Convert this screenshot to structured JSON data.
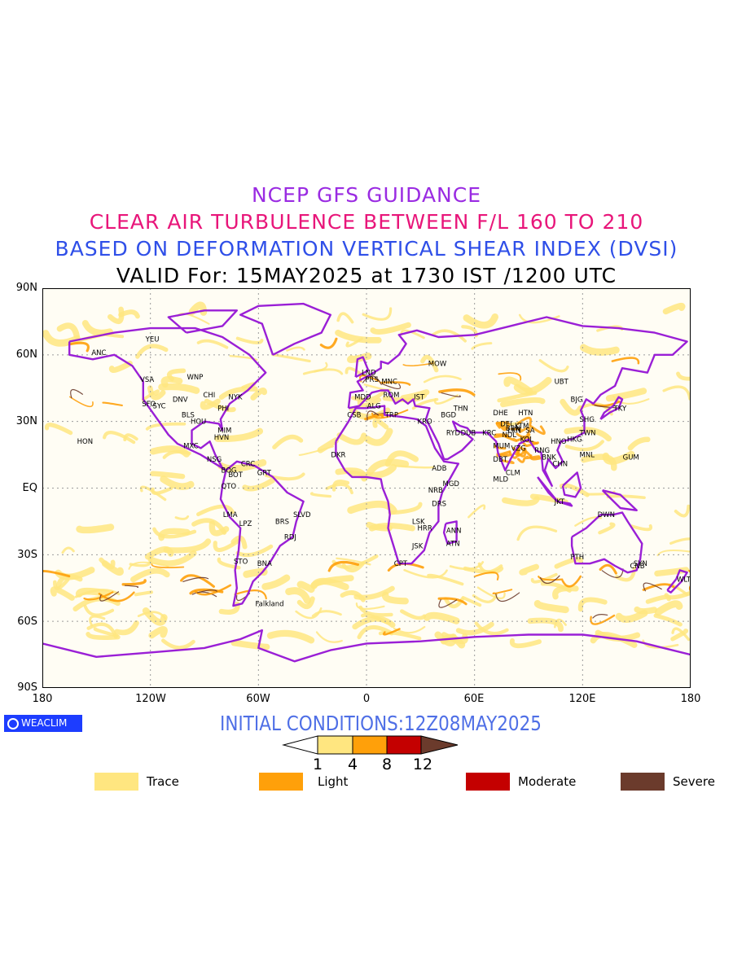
{
  "titles": {
    "line1": "NCEP GFS GUIDANCE",
    "line2": "CLEAR AIR TURBULENCE BETWEEN F/L 160 TO 210",
    "line3": "BASED ON DEFORMATION VERTICAL SHEAR INDEX (DVSI)",
    "line4": "VALID For: 15MAY2025 at 1730 IST /1200 UTC"
  },
  "colors": {
    "title1": "#9a2be2",
    "title2": "#e8167a",
    "title3": "#2f4fe8",
    "coastline": "#9a1fd6",
    "trace": "#ffe680",
    "light": "#ffa00a",
    "moderate": "#c40000",
    "severe": "#6b3b2c"
  },
  "axes": {
    "y_ticks": [
      "90N",
      "60N",
      "30N",
      "EQ",
      "30S",
      "60S",
      "90S"
    ],
    "x_ticks": [
      "180",
      "120W",
      "60W",
      "0",
      "60E",
      "120E",
      "180"
    ]
  },
  "stations": [
    {
      "code": "ANC",
      "lon": -150,
      "lat": 61
    },
    {
      "code": "YEU",
      "lon": -120,
      "lat": 67
    },
    {
      "code": "VSA",
      "lon": -123,
      "lat": 49
    },
    {
      "code": "WNP",
      "lon": -97,
      "lat": 50
    },
    {
      "code": "SFO",
      "lon": -122,
      "lat": 38
    },
    {
      "code": "SYC",
      "lon": -116,
      "lat": 37
    },
    {
      "code": "DNV",
      "lon": -105,
      "lat": 40
    },
    {
      "code": "CHI",
      "lon": -88,
      "lat": 42
    },
    {
      "code": "NYK",
      "lon": -74,
      "lat": 41
    },
    {
      "code": "BLS",
      "lon": -100,
      "lat": 33
    },
    {
      "code": "HOU",
      "lon": -95,
      "lat": 30
    },
    {
      "code": "PHI",
      "lon": -80,
      "lat": 36
    },
    {
      "code": "MIM",
      "lon": -80,
      "lat": 26
    },
    {
      "code": "HVN",
      "lon": -82,
      "lat": 23
    },
    {
      "code": "HON",
      "lon": -158,
      "lat": 21
    },
    {
      "code": "MXC",
      "lon": -99,
      "lat": 19
    },
    {
      "code": "NSG",
      "lon": -86,
      "lat": 13
    },
    {
      "code": "CRC",
      "lon": -67,
      "lat": 11
    },
    {
      "code": "BOG",
      "lon": -78,
      "lat": 8
    },
    {
      "code": "BOT",
      "lon": -74,
      "lat": 6
    },
    {
      "code": "GRT",
      "lon": -58,
      "lat": 7
    },
    {
      "code": "QTO",
      "lon": -78,
      "lat": 1
    },
    {
      "code": "LMA",
      "lon": -77,
      "lat": -12
    },
    {
      "code": "LPZ",
      "lon": -68,
      "lat": -16
    },
    {
      "code": "BRS",
      "lon": -48,
      "lat": -15
    },
    {
      "code": "SLVD",
      "lon": -38,
      "lat": -12
    },
    {
      "code": "RDJ",
      "lon": -43,
      "lat": -22
    },
    {
      "code": "STO",
      "lon": -71,
      "lat": -33
    },
    {
      "code": "BNA",
      "lon": -58,
      "lat": -34
    },
    {
      "code": "Falkland",
      "lon": -59,
      "lat": -52
    },
    {
      "code": "LND",
      "lon": 0,
      "lat": 52
    },
    {
      "code": "PRS",
      "lon": 2,
      "lat": 49
    },
    {
      "code": "MNC",
      "lon": 11,
      "lat": 48
    },
    {
      "code": "MOW",
      "lon": 37,
      "lat": 56
    },
    {
      "code": "MDD",
      "lon": -4,
      "lat": 41
    },
    {
      "code": "ROM",
      "lon": 12,
      "lat": 42
    },
    {
      "code": "IST",
      "lon": 29,
      "lat": 41
    },
    {
      "code": "ALG",
      "lon": 3,
      "lat": 37
    },
    {
      "code": "CSB",
      "lon": -8,
      "lat": 33
    },
    {
      "code": "TRP",
      "lon": 13,
      "lat": 33
    },
    {
      "code": "KRO",
      "lon": 31,
      "lat": 30
    },
    {
      "code": "BGD",
      "lon": 44,
      "lat": 33
    },
    {
      "code": "THN",
      "lon": 51,
      "lat": 36
    },
    {
      "code": "RYD",
      "lon": 47,
      "lat": 25
    },
    {
      "code": "DUB",
      "lon": 55,
      "lat": 25
    },
    {
      "code": "KRC",
      "lon": 67,
      "lat": 25
    },
    {
      "code": "ADB",
      "lon": 39,
      "lat": 9
    },
    {
      "code": "DKR",
      "lon": -17,
      "lat": 15
    },
    {
      "code": "NRB",
      "lon": 37,
      "lat": -1
    },
    {
      "code": "MGD",
      "lon": 45,
      "lat": 2
    },
    {
      "code": "DRS",
      "lon": 39,
      "lat": -7
    },
    {
      "code": "ANN",
      "lon": 47,
      "lat": -19
    },
    {
      "code": "LSK",
      "lon": 28,
      "lat": -15
    },
    {
      "code": "HRR",
      "lon": 31,
      "lat": -18
    },
    {
      "code": "ATN",
      "lon": 47,
      "lat": -25
    },
    {
      "code": "JSK",
      "lon": 28,
      "lat": -26
    },
    {
      "code": "CPT",
      "lon": 18,
      "lat": -34
    },
    {
      "code": "DHE",
      "lon": 73,
      "lat": 34
    },
    {
      "code": "DEL",
      "lon": 77,
      "lat": 29
    },
    {
      "code": "BRN",
      "lon": 80,
      "lat": 27
    },
    {
      "code": "LKN",
      "lon": 81,
      "lat": 26
    },
    {
      "code": "NDL",
      "lon": 78,
      "lat": 24
    },
    {
      "code": "KTM",
      "lon": 85,
      "lat": 28
    },
    {
      "code": "SA",
      "lon": 91,
      "lat": 26
    },
    {
      "code": "HTN",
      "lon": 87,
      "lat": 34
    },
    {
      "code": "MUM",
      "lon": 73,
      "lat": 19
    },
    {
      "code": "KOL",
      "lon": 88,
      "lat": 22
    },
    {
      "code": "VZG",
      "lon": 83,
      "lat": 18
    },
    {
      "code": "DBT",
      "lon": 73,
      "lat": 13
    },
    {
      "code": "CLM",
      "lon": 80,
      "lat": 7
    },
    {
      "code": "MLD",
      "lon": 73,
      "lat": 4
    },
    {
      "code": "RNG",
      "lon": 96,
      "lat": 17
    },
    {
      "code": "BNK",
      "lon": 100,
      "lat": 14
    },
    {
      "code": "CHN",
      "lon": 106,
      "lat": 11
    },
    {
      "code": "HNO",
      "lon": 105,
      "lat": 21
    },
    {
      "code": "HKG",
      "lon": 114,
      "lat": 22
    },
    {
      "code": "TWN",
      "lon": 121,
      "lat": 25
    },
    {
      "code": "SHG",
      "lon": 121,
      "lat": 31
    },
    {
      "code": "BJG",
      "lon": 116,
      "lat": 40
    },
    {
      "code": "UBT",
      "lon": 107,
      "lat": 48
    },
    {
      "code": "TKY",
      "lon": 140,
      "lat": 36
    },
    {
      "code": "MNL",
      "lon": 121,
      "lat": 15
    },
    {
      "code": "GUM",
      "lon": 145,
      "lat": 14
    },
    {
      "code": "JKT",
      "lon": 107,
      "lat": -6
    },
    {
      "code": "DWN",
      "lon": 131,
      "lat": -12
    },
    {
      "code": "PTH",
      "lon": 116,
      "lat": -31
    },
    {
      "code": "SYN",
      "lon": 151,
      "lat": -34
    },
    {
      "code": "CNB",
      "lon": 149,
      "lat": -35
    },
    {
      "code": "WLT",
      "lon": 175,
      "lat": -41
    }
  ],
  "bottom": {
    "logo": "WEACLIM",
    "init_conditions": "INITIAL CONDITIONS:12Z08MAY2025"
  },
  "colorbar": {
    "levels": [
      "1",
      "4",
      "8",
      "12"
    ]
  },
  "legend": [
    {
      "label": "Trace",
      "color": "#ffe680"
    },
    {
      "label": "Light",
      "color": "#ffa00a"
    },
    {
      "label": "Moderate",
      "color": "#c40000"
    },
    {
      "label": "Severe",
      "color": "#6b3b2c"
    }
  ]
}
